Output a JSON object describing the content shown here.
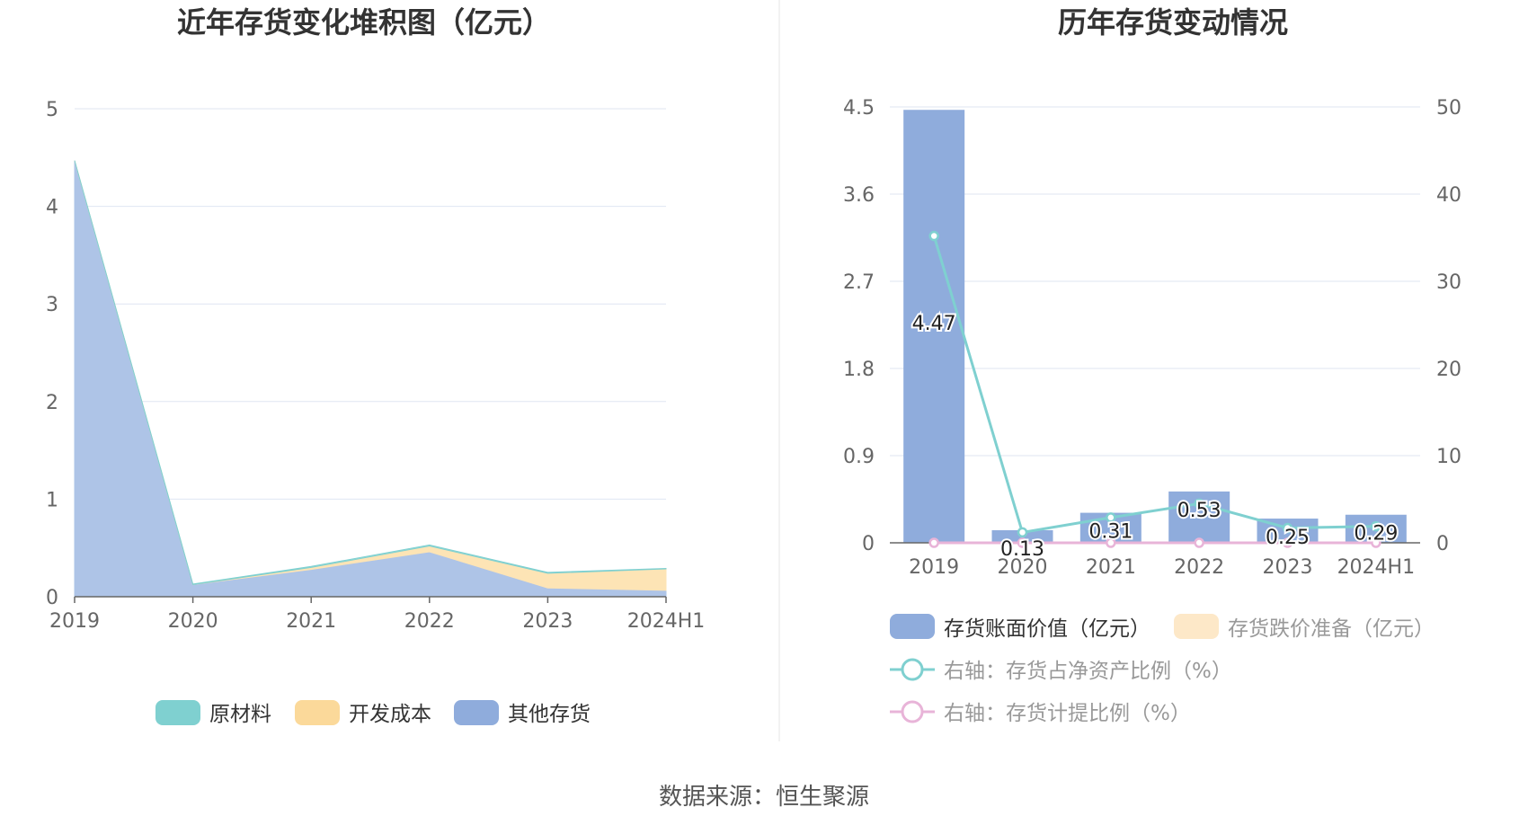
{
  "source_text": "数据来源：恒生聚源",
  "colors": {
    "raw": "#7fd0d0",
    "dev": "#fbd99a",
    "other": "#8facdc",
    "other_fill": "#aec4e7",
    "dev_fill": "#fde4b5",
    "raw_fill": "#b3e4e4",
    "bar_book": "#8facdc",
    "bar_reserve": "#fde8c8",
    "line_ratio": "#7fd0d0",
    "line_provision": "#e8b4d8",
    "grid": "#dfe6f2",
    "axis": "#666666"
  },
  "chart_data": [
    {
      "type": "area",
      "stacked": true,
      "title": "近年存货变化堆积图（亿元）",
      "categories": [
        "2019",
        "2020",
        "2021",
        "2022",
        "2023",
        "2024H1"
      ],
      "ylim": [
        0,
        5
      ],
      "yticks": [
        "0",
        "1",
        "2",
        "3",
        "4",
        "5"
      ],
      "grid": true,
      "legend_position": "bottom",
      "series": [
        {
          "name": "原材料",
          "values": [
            0.0,
            0.005,
            0.01,
            0.01,
            0.01,
            0.005
          ]
        },
        {
          "name": "开发成本",
          "values": [
            0.0,
            0.0,
            0.02,
            0.06,
            0.15,
            0.22
          ]
        },
        {
          "name": "其他存货",
          "values": [
            4.47,
            0.125,
            0.28,
            0.46,
            0.09,
            0.065
          ]
        }
      ]
    },
    {
      "type": "bar",
      "title": "历年存货变动情况",
      "categories": [
        "2019",
        "2020",
        "2021",
        "2022",
        "2023",
        "2024H1"
      ],
      "ylim": [
        0,
        4.5
      ],
      "yticks": [
        "0",
        "0.9",
        "1.8",
        "2.7",
        "3.6",
        "4.5"
      ],
      "y2lim": [
        0,
        50
      ],
      "y2ticks": [
        "0",
        "10",
        "20",
        "30",
        "40",
        "50"
      ],
      "grid": true,
      "legend_position": "bottom",
      "series": [
        {
          "name": "存货账面价值（亿元）",
          "type": "bar",
          "axis": "left",
          "values": [
            4.47,
            0.13,
            0.31,
            0.53,
            0.25,
            0.29
          ],
          "labels": [
            "4.47",
            "0.13",
            "0.31",
            "0.53",
            "0.25",
            "0.29"
          ]
        },
        {
          "name": "存货跌价准备（亿元）",
          "type": "bar",
          "axis": "left",
          "values": [
            0,
            0,
            0,
            0,
            0,
            0
          ]
        },
        {
          "name": "右轴：存货占净资产比例（%）",
          "type": "line",
          "axis": "right",
          "values": [
            35.2,
            1.2,
            2.9,
            4.5,
            1.7,
            1.9
          ]
        },
        {
          "name": "右轴：存货计提比例（%）",
          "type": "line",
          "axis": "right",
          "values": [
            0,
            0,
            0,
            0,
            0,
            0
          ]
        }
      ]
    }
  ]
}
